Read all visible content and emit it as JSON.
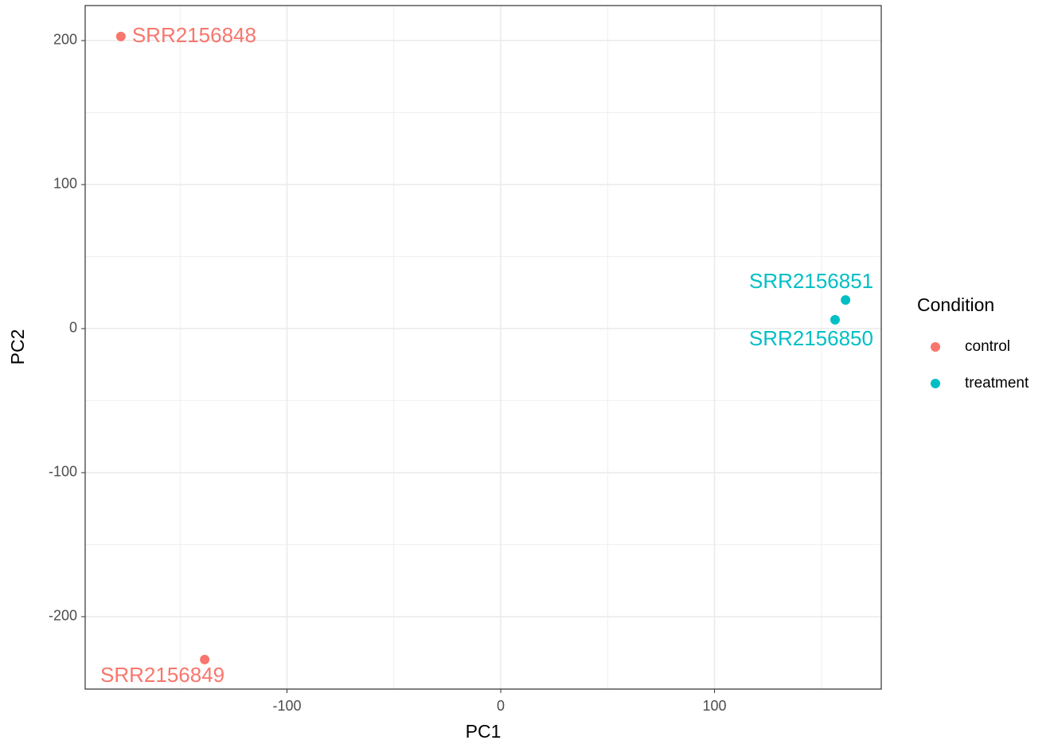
{
  "chart_data": {
    "type": "scatter",
    "xlabel": "PC1",
    "ylabel": "PC2",
    "legend_title": "Condition",
    "xlim": [
      -194.4,
      178.0
    ],
    "ylim": [
      -250.3,
      224.3
    ],
    "xticks": [
      -100,
      0,
      100
    ],
    "yticks": [
      -200,
      -100,
      0,
      100,
      200
    ],
    "grid": true,
    "legend": "right",
    "series": [
      {
        "name": "control",
        "color": "#F8766D",
        "x": [
          -177.7,
          -138.5
        ],
        "values": [
          202.8,
          -229.8
        ],
        "point_labels": [
          "SRR2156848",
          "SRR2156849"
        ]
      },
      {
        "name": "treatment",
        "color": "#00BFC4",
        "x": [
          156.4,
          161.3
        ],
        "values": [
          6.1,
          19.9
        ],
        "point_labels": [
          "SRR2156850",
          "SRR2156851"
        ]
      }
    ]
  }
}
